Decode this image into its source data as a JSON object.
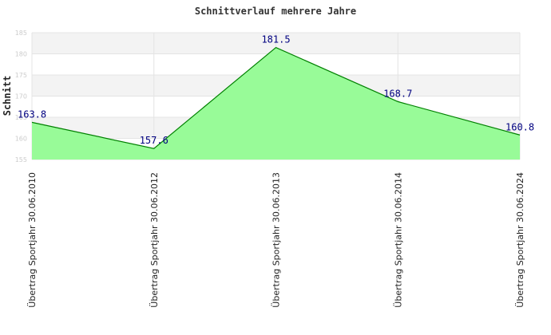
{
  "chart_data": {
    "type": "area",
    "title": "Schnittverlauf mehrere Jahre",
    "ylabel": "Schnitt",
    "xlabel": "",
    "ylim": [
      155,
      185
    ],
    "yticks": [
      155,
      160,
      165,
      170,
      175,
      180,
      185
    ],
    "grid": true,
    "categories": [
      "Übertrag Sportjahr 30.06.2010",
      "Übertrag Sportjahr 30.06.2012",
      "Übertrag Sportjahr 30.06.2013",
      "Übertrag Sportjahr 30.06.2014",
      "Übertrag Sportjahr 30.06.2024"
    ],
    "values": [
      163.8,
      157.6,
      181.5,
      168.7,
      160.8
    ],
    "data_labels": [
      "163.8",
      "157.6",
      "181.5",
      "168.7",
      "160.8"
    ],
    "colors": {
      "fill": "#98fb98",
      "line": "#008000",
      "band": "#f3f3f3",
      "label": "#000080"
    }
  }
}
